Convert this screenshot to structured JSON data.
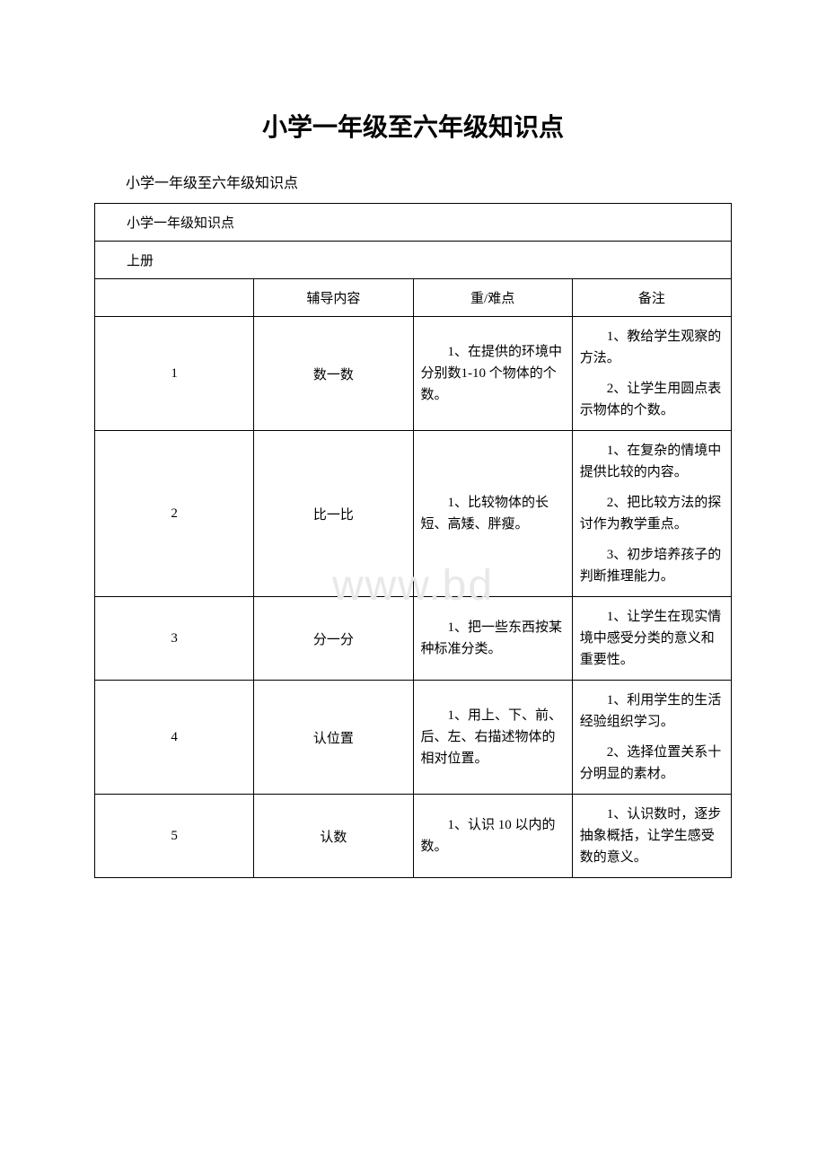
{
  "page_title": "小学一年级至六年级知识点",
  "subtitle": "小学一年级至六年级知识点",
  "watermark": "www.bd",
  "table": {
    "section_header": "小学一年级知识点",
    "book_section": "上册",
    "columns": {
      "col1": "",
      "col2": "辅导内容",
      "col3": "重/难点",
      "col4": "备注"
    },
    "rows": [
      {
        "num": "1",
        "content": "数一数",
        "difficulty": [
          "1、在提供的环境中分别数1-10 个物体的个数。"
        ],
        "notes": [
          "1、教给学生观察的方法。",
          "2、让学生用圆点表示物体的个数。"
        ]
      },
      {
        "num": "2",
        "content": "比一比",
        "difficulty": [
          "1、比较物体的长短、高矮、胖瘦。"
        ],
        "notes": [
          "1、在复杂的情境中提供比较的内容。",
          "2、把比较方法的探讨作为教学重点。",
          "3、初步培养孩子的判断推理能力。"
        ]
      },
      {
        "num": "3",
        "content": "分一分",
        "difficulty": [
          "1、把一些东西按某种标准分类。"
        ],
        "notes": [
          "1、让学生在现实情境中感受分类的意义和重要性。"
        ]
      },
      {
        "num": "4",
        "content": "认位置",
        "difficulty": [
          "1、用上、下、前、后、左、右描述物体的相对位置。"
        ],
        "notes": [
          "1、利用学生的生活经验组织学习。",
          "2、选择位置关系十分明显的素材。"
        ]
      },
      {
        "num": "5",
        "content": "认数",
        "difficulty": [
          "1、认识 10 以内的数。"
        ],
        "notes": [
          "1、认识数时，逐步抽象概括，让学生感受数的意义。"
        ]
      }
    ]
  },
  "styling": {
    "background_color": "#ffffff",
    "text_color": "#000000",
    "border_color": "#000000",
    "watermark_color": "#e8e8e8",
    "title_fontsize": 28,
    "body_fontsize": 15,
    "subtitle_fontsize": 16
  }
}
